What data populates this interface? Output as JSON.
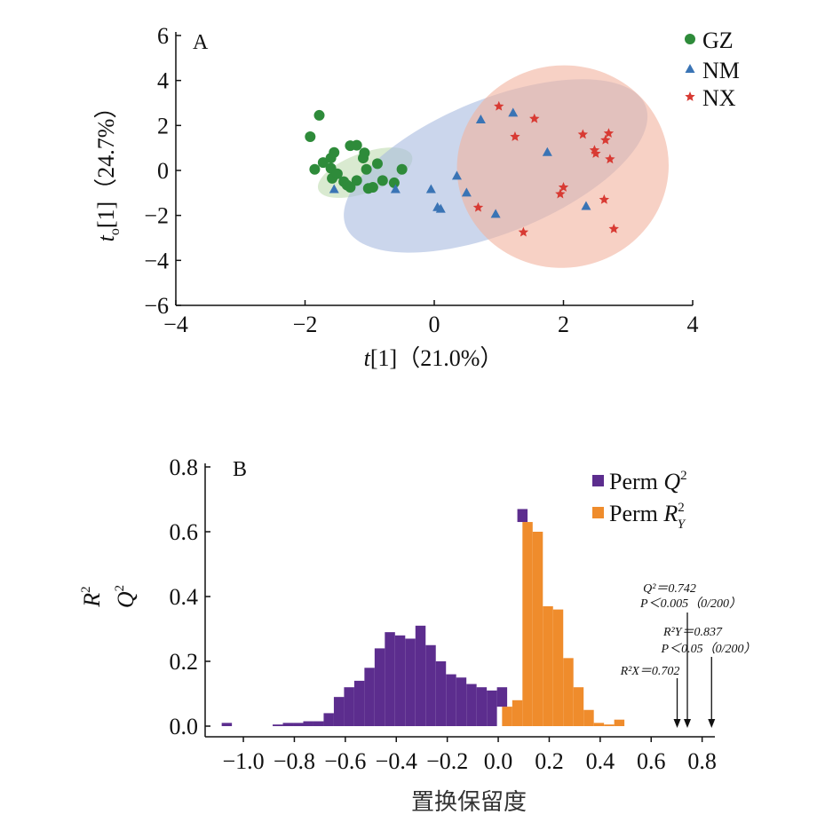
{
  "chart_data": [
    {
      "type": "scatter",
      "panel_label": "A",
      "xlabel": "t[1]（21.0%）",
      "ylabel": "to[1]（24.7%）",
      "xlim": [
        -4,
        4
      ],
      "ylim": [
        -6,
        6
      ],
      "xticks": [
        -4,
        -2,
        0,
        2,
        4
      ],
      "yticks": [
        -6,
        -4,
        -2,
        0,
        2,
        4,
        6
      ],
      "xtick_labels": [
        "−4",
        "−2",
        "0",
        "2",
        "4"
      ],
      "ytick_labels": [
        "−6",
        "−4",
        "−2",
        "0",
        "2",
        "4",
        "6"
      ],
      "legend_position": "top-right",
      "series": [
        {
          "name": "GZ",
          "marker": "circle",
          "color": "#2e8b3a",
          "ellipse": {
            "cx": -1.07,
            "cy": -0.1,
            "rx": 0.77,
            "ry": 0.88,
            "rotation_deg": -20,
            "fill": "#bfdcb0"
          },
          "points": [
            [
              -1.78,
              2.45
            ],
            [
              -1.92,
              1.5
            ],
            [
              -1.85,
              0.05
            ],
            [
              -1.72,
              0.35
            ],
            [
              -1.6,
              0.55
            ],
            [
              -1.55,
              0.8
            ],
            [
              -1.6,
              0.1
            ],
            [
              -1.58,
              -0.35
            ],
            [
              -1.5,
              -0.15
            ],
            [
              -1.4,
              -0.5
            ],
            [
              -1.35,
              -0.65
            ],
            [
              -1.3,
              -0.75
            ],
            [
              -1.3,
              1.1
            ],
            [
              -1.2,
              1.12
            ],
            [
              -1.2,
              -0.45
            ],
            [
              -1.1,
              0.55
            ],
            [
              -1.08,
              0.78
            ],
            [
              -1.05,
              0.05
            ],
            [
              -1.02,
              -0.8
            ],
            [
              -0.95,
              -0.75
            ],
            [
              -0.88,
              0.3
            ],
            [
              -0.8,
              -0.45
            ],
            [
              -0.62,
              -0.55
            ],
            [
              -0.5,
              0.05
            ]
          ]
        },
        {
          "name": "NM",
          "marker": "triangle",
          "color": "#3a74b5",
          "ellipse": {
            "cx": 0.95,
            "cy": 0.2,
            "rx": 2.5,
            "ry": 2.98,
            "rotation_deg": -22,
            "fill": "#a9bbe0"
          },
          "points": [
            [
              -1.55,
              -0.85
            ],
            [
              -0.6,
              -0.85
            ],
            [
              -0.05,
              -0.85
            ],
            [
              0.05,
              -1.65
            ],
            [
              0.1,
              -1.72
            ],
            [
              0.35,
              -0.25
            ],
            [
              0.5,
              -1.0
            ],
            [
              0.72,
              2.25
            ],
            [
              0.95,
              -1.95
            ],
            [
              1.22,
              2.55
            ],
            [
              1.75,
              0.8
            ],
            [
              2.35,
              -1.6
            ]
          ]
        },
        {
          "name": "NX",
          "marker": "star",
          "color": "#d83a33",
          "ellipse": {
            "cx": 1.99,
            "cy": 0.17,
            "rx": 1.64,
            "ry": 4.5,
            "rotation_deg": -8,
            "fill": "#f1b39e"
          },
          "points": [
            [
              0.68,
              -1.65
            ],
            [
              1.0,
              2.85
            ],
            [
              1.25,
              1.5
            ],
            [
              1.38,
              -2.75
            ],
            [
              1.55,
              2.3
            ],
            [
              1.95,
              -1.05
            ],
            [
              2.0,
              -0.75
            ],
            [
              2.3,
              1.6
            ],
            [
              2.48,
              0.9
            ],
            [
              2.5,
              0.75
            ],
            [
              2.63,
              -1.3
            ],
            [
              2.65,
              1.35
            ],
            [
              2.7,
              1.65
            ],
            [
              2.72,
              0.5
            ],
            [
              2.78,
              -2.6
            ]
          ]
        }
      ]
    },
    {
      "type": "bar",
      "panel_label": "B",
      "xlabel": "置换保留度",
      "ylabel": "R2 Q2",
      "xlim": [
        -1.15,
        0.85
      ],
      "ylim": [
        0,
        0.8
      ],
      "xticks": [
        -1.0,
        -0.8,
        -0.6,
        -0.4,
        -0.2,
        0.0,
        0.2,
        0.4,
        0.6,
        0.8
      ],
      "yticks": [
        0.0,
        0.2,
        0.4,
        0.6,
        0.8
      ],
      "xtick_labels": [
        "−1.0",
        "−0.8",
        "−0.6",
        "−0.4",
        "−0.2",
        "0.0",
        "0.2",
        "0.4",
        "0.6",
        "0.8"
      ],
      "ytick_labels": [
        "0.0",
        "0.2",
        "0.4",
        "0.6",
        "0.8"
      ],
      "legend_position": "top-right",
      "bin_width": 0.04,
      "series": [
        {
          "name": "Perm Q2",
          "color": "#5c2d8e",
          "bins": [
            [
              -1.065,
              0.01
            ],
            [
              -0.865,
              0.005
            ],
            [
              -0.825,
              0.01
            ],
            [
              -0.785,
              0.01
            ],
            [
              -0.745,
              0.015
            ],
            [
              -0.705,
              0.015
            ],
            [
              -0.665,
              0.04
            ],
            [
              -0.625,
              0.09
            ],
            [
              -0.585,
              0.12
            ],
            [
              -0.545,
              0.14
            ],
            [
              -0.505,
              0.18
            ],
            [
              -0.465,
              0.24
            ],
            [
              -0.425,
              0.29
            ],
            [
              -0.385,
              0.28
            ],
            [
              -0.345,
              0.27
            ],
            [
              -0.305,
              0.31
            ],
            [
              -0.265,
              0.25
            ],
            [
              -0.225,
              0.2
            ],
            [
              -0.185,
              0.16
            ],
            [
              -0.145,
              0.15
            ],
            [
              -0.105,
              0.13
            ],
            [
              -0.065,
              0.12
            ],
            [
              -0.025,
              0.11
            ],
            [
              0.015,
              0.12
            ],
            [
              0.055,
              0.08
            ],
            [
              0.095,
              0.67
            ],
            [
              0.135,
              0.58
            ],
            [
              0.175,
              0.4
            ],
            [
              0.215,
              0.37
            ]
          ]
        },
        {
          "name": "Perm RY2",
          "color": "#ef8c2c",
          "bins": [
            [
              0.035,
              0.06
            ],
            [
              0.075,
              0.08
            ],
            [
              0.115,
              0.63
            ],
            [
              0.155,
              0.6
            ],
            [
              0.195,
              0.37
            ],
            [
              0.235,
              0.36
            ],
            [
              0.275,
              0.21
            ],
            [
              0.315,
              0.12
            ],
            [
              0.355,
              0.05
            ],
            [
              0.395,
              0.01
            ],
            [
              0.435,
              0.005
            ],
            [
              0.475,
              0.02
            ]
          ]
        }
      ],
      "legend_labels": {
        "q2_prefix": "Perm Q",
        "q2_sup": "2",
        "r2_prefix": "Perm R",
        "r2_sup": "2",
        "r2_sub": "Y"
      },
      "ylabel_parts": {
        "r": "R",
        "q": "Q",
        "sup": "2"
      },
      "annotations": [
        {
          "lines": [
            "Q²＝0.742",
            "P＜0.005（0/200）"
          ],
          "x": 0.742
        },
        {
          "lines": [
            "R²Y＝0.837",
            "P＜0.05（0/200）"
          ],
          "x": 0.837
        },
        {
          "lines": [
            "R²X＝0.702"
          ],
          "x": 0.702
        }
      ]
    }
  ]
}
